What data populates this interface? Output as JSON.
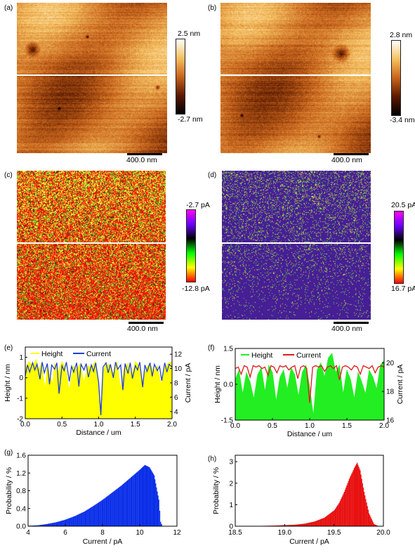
{
  "panels": {
    "a": {
      "label": "(a)",
      "cbar_top": "2.5 nm",
      "cbar_bottom": "-2.7 nm",
      "scale": "400.0 nm"
    },
    "b": {
      "label": "(b)",
      "cbar_top": "2.8 nm",
      "cbar_bottom": "-3.4 nm",
      "scale": "400.0 nm"
    },
    "c": {
      "label": "(c)",
      "cbar_top": "-2.7 pA",
      "cbar_bottom": "-12.8 pA",
      "scale": "400.0 nm"
    },
    "d": {
      "label": "(d)",
      "cbar_top": "20.5 pA",
      "cbar_bottom": "16.7 pA",
      "scale": "400.0 nm"
    },
    "e": {
      "label": "(e)"
    },
    "f": {
      "label": "(f)"
    },
    "g": {
      "label": "(g)"
    },
    "h": {
      "label": "(h)"
    }
  },
  "colors": {
    "afm_orange": "#c8641c",
    "height_yellow": "#ffff00",
    "height_green": "#22ee22",
    "current_blue": "#1f3fcf",
    "current_red": "#e01a1a",
    "hist_blue": "#0a2ee8",
    "hist_red": "#e81010"
  },
  "chart_data": [
    {
      "id": "e",
      "type": "line",
      "xlabel": "Distance / um",
      "ylabel": "Height / nm",
      "y2label": "Current / pA",
      "xlim": [
        0,
        2.0
      ],
      "ylim": [
        -2,
        1.5
      ],
      "y2lim": [
        3,
        13
      ],
      "xticks": [
        "0.0",
        "0.5",
        "1.0",
        "1.5",
        "2.0"
      ],
      "yticks": [
        "-2",
        "-1",
        "0",
        "1"
      ],
      "y2ticks": [
        "4",
        "6",
        "8",
        "10",
        "12"
      ],
      "series": [
        {
          "name": "Height",
          "axis": "left",
          "fill": true,
          "baseline": -2,
          "x": [
            0,
            0.05,
            0.1,
            0.15,
            0.18,
            0.22,
            0.27,
            0.3,
            0.33,
            0.37,
            0.4,
            0.45,
            0.5,
            0.55,
            0.6,
            0.65,
            0.7,
            0.75,
            0.8,
            0.85,
            0.9,
            0.95,
            1.0,
            1.03,
            1.06,
            1.1,
            1.15,
            1.2,
            1.25,
            1.3,
            1.35,
            1.4,
            1.45,
            1.5,
            1.55,
            1.6,
            1.65,
            1.7,
            1.75,
            1.8,
            1.85,
            1.9,
            1.95,
            2.0
          ],
          "y": [
            0.5,
            0.8,
            0.6,
            0.9,
            0.4,
            0.7,
            -0.5,
            0.6,
            0.2,
            -0.3,
            0.7,
            0.3,
            0.8,
            0.5,
            -0.6,
            0.6,
            0.4,
            0.7,
            -0.2,
            0.6,
            0.5,
            0.8,
            -0.4,
            -1.9,
            0.3,
            0.7,
            0.6,
            0.2,
            0.8,
            -0.5,
            0.5,
            0.7,
            0.1,
            0.8,
            0.6,
            -0.2,
            0.5,
            0.7,
            0.3,
            0.6,
            -0.3,
            0.5,
            0.7,
            0.8
          ]
        },
        {
          "name": "Current",
          "axis": "right",
          "x": [
            0,
            0.03,
            0.06,
            0.1,
            0.13,
            0.16,
            0.2,
            0.23,
            0.26,
            0.3,
            0.33,
            0.36,
            0.4,
            0.43,
            0.46,
            0.5,
            0.53,
            0.56,
            0.6,
            0.63,
            0.66,
            0.7,
            0.73,
            0.76,
            0.8,
            0.83,
            0.86,
            0.9,
            0.93,
            0.96,
            1.0,
            1.03,
            1.06,
            1.1,
            1.13,
            1.16,
            1.2,
            1.23,
            1.26,
            1.3,
            1.33,
            1.36,
            1.4,
            1.43,
            1.46,
            1.5,
            1.53,
            1.56,
            1.6,
            1.63,
            1.66,
            1.7,
            1.73,
            1.76,
            1.8,
            1.83,
            1.86,
            1.9,
            1.93,
            1.96,
            2.0
          ],
          "y": [
            9,
            10.5,
            9.5,
            10.8,
            9.8,
            10.6,
            8.5,
            10.9,
            9.4,
            10.7,
            7.8,
            10.5,
            9.9,
            10.8,
            6.5,
            10.4,
            9.7,
            10.9,
            8.2,
            10.3,
            9.5,
            10.8,
            7.5,
            10.6,
            9.8,
            10.7,
            8.8,
            10.5,
            9.6,
            10.8,
            8.0,
            3.5,
            10.2,
            10.8,
            9.4,
            10.6,
            8.7,
            10.9,
            9.9,
            10.5,
            7.0,
            10.7,
            9.3,
            10.8,
            8.6,
            10.4,
            9.8,
            10.9,
            7.4,
            10.5,
            9.6,
            10.8,
            8.9,
            10.6,
            9.7,
            10.3,
            8.3,
            10.8,
            9.5,
            10.6,
            10.2
          ]
        }
      ]
    },
    {
      "id": "f",
      "type": "line",
      "xlabel": "Distance / um",
      "ylabel": "Height / nm",
      "y2label": "Current / pA",
      "xlim": [
        0,
        2.0
      ],
      "ylim": [
        -1.5,
        1.5
      ],
      "y2lim": [
        16,
        21
      ],
      "xticks": [
        "0.0",
        "0.5",
        "1.0",
        "1.5",
        "2.0"
      ],
      "yticks": [
        "-1.5",
        "0.0",
        "1.5"
      ],
      "y2ticks": [
        "16",
        "18",
        "20"
      ],
      "series": [
        {
          "name": "Height",
          "axis": "left",
          "fill": true,
          "baseline": -1.5,
          "x": [
            0,
            0.05,
            0.1,
            0.15,
            0.2,
            0.25,
            0.3,
            0.35,
            0.4,
            0.45,
            0.5,
            0.55,
            0.6,
            0.65,
            0.7,
            0.75,
            0.8,
            0.85,
            0.9,
            0.95,
            1.0,
            1.05,
            1.1,
            1.15,
            1.2,
            1.25,
            1.3,
            1.35,
            1.4,
            1.45,
            1.5,
            1.55,
            1.6,
            1.65,
            1.7,
            1.75,
            1.8,
            1.85,
            1.9,
            1.95,
            2.0
          ],
          "y": [
            0.2,
            0.6,
            -0.4,
            0.5,
            0.1,
            -0.6,
            0.4,
            0.7,
            -0.3,
            0.8,
            0.5,
            -0.7,
            0.3,
            0.6,
            -0.2,
            0.7,
            0.4,
            -0.5,
            0.5,
            0.8,
            -0.1,
            -1.3,
            0.6,
            0.9,
            0.3,
            1.1,
            1.3,
            0.5,
            0.8,
            -0.4,
            0.6,
            0.2,
            -0.6,
            0.5,
            0.1,
            -0.4,
            0.6,
            0.3,
            -0.2,
            0.8,
            1.0
          ]
        },
        {
          "name": "Current",
          "axis": "right",
          "x": [
            0,
            0.04,
            0.08,
            0.12,
            0.16,
            0.2,
            0.24,
            0.28,
            0.32,
            0.36,
            0.4,
            0.44,
            0.48,
            0.52,
            0.56,
            0.6,
            0.64,
            0.68,
            0.72,
            0.76,
            0.8,
            0.84,
            0.88,
            0.92,
            0.96,
            1.0,
            1.04,
            1.08,
            1.12,
            1.16,
            1.2,
            1.24,
            1.28,
            1.32,
            1.36,
            1.4,
            1.44,
            1.48,
            1.52,
            1.56,
            1.6,
            1.64,
            1.68,
            1.72,
            1.76,
            1.8,
            1.84,
            1.88,
            1.92,
            1.96,
            2.0
          ],
          "y": [
            19.6,
            19.7,
            19.2,
            19.8,
            19.7,
            19.0,
            19.8,
            19.7,
            19.8,
            19.6,
            19.7,
            19.1,
            19.8,
            19.7,
            19.3,
            19.8,
            19.7,
            19.8,
            19.5,
            19.7,
            19.8,
            18.9,
            19.7,
            19.8,
            19.6,
            17.2,
            19.7,
            19.8,
            19.7,
            19.8,
            19.4,
            19.7,
            19.8,
            19.6,
            19.8,
            18.8,
            19.7,
            19.8,
            19.7,
            19.5,
            19.8,
            19.7,
            19.2,
            19.8,
            19.7,
            19.6,
            19.8,
            19.3,
            19.7,
            19.8,
            19.7
          ]
        }
      ]
    },
    {
      "id": "g",
      "type": "bar",
      "xlabel": "Current / pA",
      "ylabel": "Probability / %",
      "xlim": [
        4,
        12
      ],
      "ylim": [
        0,
        1.6
      ],
      "xticks": [
        "4",
        "6",
        "8",
        "10",
        "12"
      ],
      "yticks": [
        "0.0",
        "0.4",
        "0.8",
        "1.2",
        "1.6"
      ],
      "x": [
        4,
        4.5,
        5,
        5.5,
        6,
        6.5,
        7,
        7.5,
        8,
        8.5,
        9,
        9.5,
        10,
        10.25,
        10.5,
        10.75,
        11,
        11.1,
        11.2
      ],
      "values": [
        0.01,
        0.02,
        0.05,
        0.09,
        0.15,
        0.23,
        0.33,
        0.46,
        0.6,
        0.76,
        0.92,
        1.1,
        1.28,
        1.38,
        1.33,
        1.15,
        0.6,
        0.1,
        0.0
      ]
    },
    {
      "id": "h",
      "type": "bar",
      "xlabel": "Current / pA",
      "ylabel": "Probability / %",
      "xlim": [
        18.5,
        20.0
      ],
      "ylim": [
        0,
        3.3
      ],
      "xticks": [
        "18.5",
        "19.0",
        "19.5",
        "20.0"
      ],
      "yticks": [
        "0",
        "1",
        "2",
        "3"
      ],
      "x": [
        18.5,
        18.7,
        18.9,
        19.1,
        19.2,
        19.3,
        19.4,
        19.5,
        19.55,
        19.6,
        19.65,
        19.7,
        19.73,
        19.76,
        19.8,
        19.85,
        19.9,
        19.95
      ],
      "values": [
        0.0,
        0.01,
        0.03,
        0.07,
        0.12,
        0.22,
        0.4,
        0.75,
        1.1,
        1.6,
        2.2,
        2.7,
        2.95,
        2.6,
        1.6,
        0.6,
        0.1,
        0.0
      ]
    }
  ]
}
